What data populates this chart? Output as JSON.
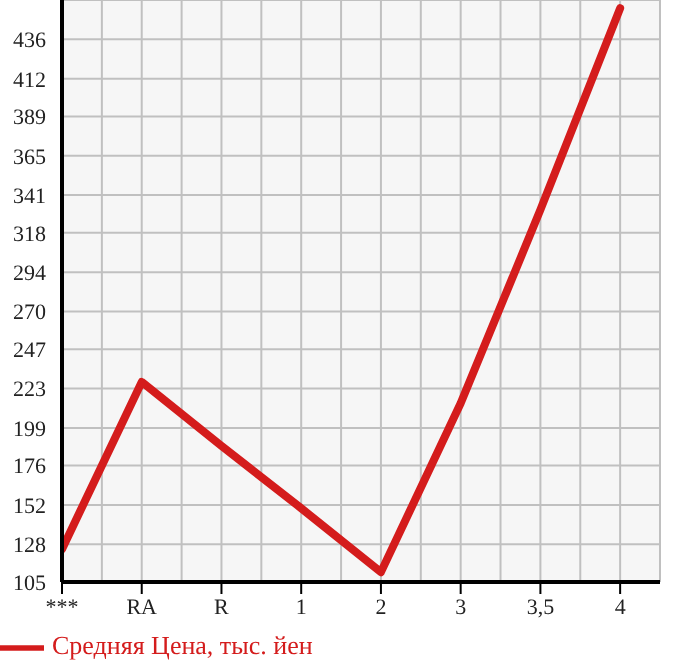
{
  "chart_data": {
    "type": "line",
    "categories": [
      "***",
      "RA",
      "R",
      "1",
      "2",
      "3",
      "3,5",
      "4"
    ],
    "series": [
      {
        "name": "Средняя Цена, тыс. йен",
        "color": "#d41c1c",
        "values": [
          125,
          227,
          188,
          150,
          111,
          214,
          332,
          455
        ]
      }
    ],
    "ylim": [
      105,
      460
    ],
    "yticks": [
      105,
      128,
      152,
      176,
      199,
      223,
      247,
      270,
      294,
      318,
      341,
      365,
      389,
      412,
      436
    ],
    "grid": true,
    "legend": "bottom",
    "marker": "none",
    "line_style": "solid"
  }
}
